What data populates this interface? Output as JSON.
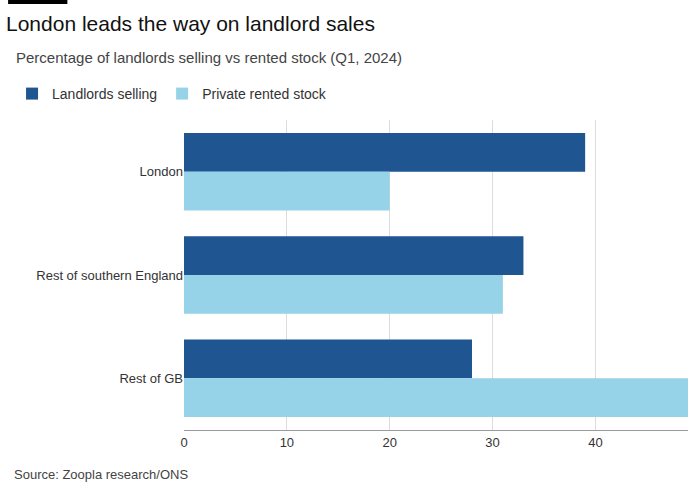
{
  "chart_data": {
    "type": "bar",
    "title": "London leads the way on landlord sales",
    "subtitle": "Percentage of landlords selling vs rented stock (Q1, 2024)",
    "source": "Source: Zoopla research/ONS",
    "orientation": "horizontal",
    "categories": [
      "London",
      "Rest of southern England",
      "Rest of GB"
    ],
    "series": [
      {
        "name": "Landlords selling",
        "color": "#1f5591",
        "values": [
          39,
          33,
          28
        ]
      },
      {
        "name": "Private rented stock",
        "color": "#96d3e8",
        "values": [
          20,
          31,
          49
        ]
      }
    ],
    "xlim": [
      0,
      49
    ],
    "xticks": [
      0,
      10,
      20,
      30,
      40
    ],
    "grid": true,
    "legend": "top-left"
  }
}
